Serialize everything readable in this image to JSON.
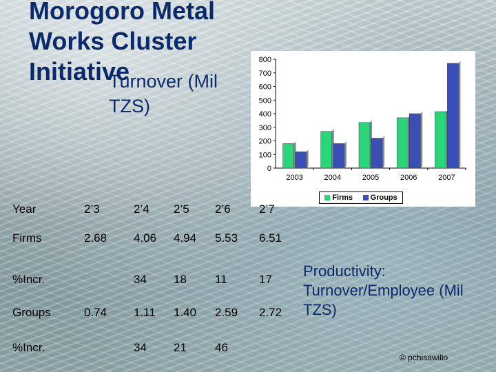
{
  "title": "Morogoro Metal Works Cluster Initiative",
  "subtitle": {
    "line1": "Turnover (Mil",
    "line2": "TZS)"
  },
  "table": {
    "rows": [
      [
        "Year",
        "2’3",
        "2’4",
        "2’5",
        "2’6",
        "2’7"
      ],
      [
        "Firms",
        "2.68",
        "4.06",
        "4.94",
        "5.53",
        "6.51"
      ],
      [
        "%Incr.",
        "",
        "34",
        "18",
        "11",
        "17"
      ],
      [
        "Groups",
        "0.74",
        "1.11",
        "1.40",
        "2.59",
        "2.72"
      ],
      [
        "%Incr.",
        "",
        "34",
        "21",
        "46",
        ""
      ]
    ]
  },
  "note": "Productivity: Turnover/Employee (Mil TZS)",
  "copyright": "© pchisawillo",
  "chart_data": {
    "type": "bar",
    "categories": [
      "2003",
      "2004",
      "2005",
      "2006",
      "2007"
    ],
    "series": [
      {
        "name": "Firms",
        "values": [
          180,
          270,
          335,
          370,
          415
        ],
        "color": "#2bd67b"
      },
      {
        "name": "Groups",
        "values": [
          120,
          180,
          220,
          400,
          770
        ],
        "color": "#3a4fb5"
      }
    ],
    "ylim": [
      0,
      800
    ],
    "yticks": [
      "0",
      "100",
      "200",
      "300",
      "400",
      "500",
      "600",
      "700",
      "800"
    ],
    "grid": false,
    "legend_position": "bottom"
  }
}
